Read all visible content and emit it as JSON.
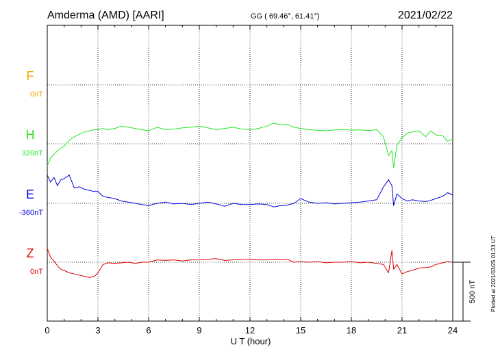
{
  "header": {
    "station": "Amderma (AMD)  [AARI]",
    "coords": "GG ( 69.46°,  61.41°)",
    "date": "2021/02/22"
  },
  "footer_note": "Plotted at 2021/03/25 01:33 UT",
  "chart_data": {
    "type": "line",
    "xlabel": "U T (hour)",
    "xlim": [
      0,
      24
    ],
    "xticks": [
      "0",
      "3",
      "6",
      "9",
      "12",
      "15",
      "18",
      "21",
      "24"
    ],
    "scale_bar_label": "500 nT",
    "scale_bar_nT": 500,
    "series": [
      {
        "name": "F",
        "baseline_label": "0nT",
        "color": "#f5a300",
        "x": [],
        "y": []
      },
      {
        "name": "H",
        "baseline_label": "320nT",
        "color": "#22e622",
        "x": [
          0,
          0.2,
          0.4,
          0.6,
          0.8,
          1.0,
          1.3,
          1.6,
          1.9,
          2.2,
          2.5,
          2.8,
          3.0,
          3.3,
          3.6,
          4.0,
          4.4,
          4.8,
          5.2,
          5.6,
          6.0,
          6.5,
          7.0,
          7.5,
          8.0,
          8.5,
          9.0,
          9.5,
          10.0,
          10.5,
          11.0,
          11.5,
          12.0,
          12.5,
          13.0,
          13.4,
          13.8,
          14.2,
          14.6,
          15.0,
          15.5,
          16.0,
          16.5,
          17.0,
          17.5,
          18.0,
          18.5,
          19.0,
          19.5,
          19.9,
          20.2,
          20.4,
          20.5,
          20.7,
          21.0,
          21.3,
          21.6,
          22.0,
          22.4,
          22.7,
          23.0,
          23.4,
          23.7,
          24.0
        ],
        "y": [
          -190,
          -120,
          -90,
          -60,
          -40,
          -20,
          30,
          60,
          80,
          100,
          110,
          120,
          120,
          130,
          120,
          130,
          150,
          140,
          130,
          120,
          110,
          140,
          120,
          125,
          135,
          140,
          150,
          135,
          120,
          130,
          140,
          125,
          120,
          130,
          150,
          175,
          160,
          165,
          140,
          130,
          120,
          115,
          110,
          118,
          122,
          115,
          118,
          112,
          120,
          60,
          -100,
          -60,
          -205,
          -10,
          50,
          90,
          100,
          110,
          60,
          110,
          75,
          70,
          20,
          40
        ]
      },
      {
        "name": "E",
        "baseline_label": "-360nT",
        "color": "#0000dd",
        "x": [
          0,
          0.2,
          0.4,
          0.6,
          0.8,
          1.0,
          1.3,
          1.6,
          1.9,
          2.2,
          2.5,
          2.8,
          3.0,
          3.3,
          3.6,
          4.0,
          4.4,
          4.8,
          5.2,
          5.6,
          6.0,
          6.5,
          7.0,
          7.5,
          8.0,
          8.5,
          9.0,
          9.5,
          10.0,
          10.5,
          11.0,
          11.5,
          12.0,
          12.5,
          13.0,
          13.4,
          13.8,
          14.2,
          14.6,
          15.0,
          15.5,
          16.0,
          16.5,
          17.0,
          17.5,
          18.0,
          18.5,
          19.0,
          19.5,
          19.9,
          20.2,
          20.4,
          20.5,
          20.7,
          21.0,
          21.3,
          21.6,
          22.0,
          22.4,
          22.7,
          23.0,
          23.4,
          23.7,
          24.0
        ],
        "y": [
          240,
          180,
          220,
          150,
          200,
          210,
          240,
          130,
          140,
          120,
          110,
          100,
          100,
          60,
          50,
          40,
          20,
          10,
          0,
          -10,
          -20,
          0,
          10,
          -5,
          0,
          -10,
          0,
          10,
          -5,
          -25,
          0,
          -10,
          -10,
          -5,
          -10,
          -30,
          -20,
          -15,
          0,
          40,
          10,
          0,
          5,
          -5,
          0,
          5,
          10,
          20,
          30,
          140,
          200,
          150,
          -20,
          80,
          40,
          20,
          30,
          20,
          15,
          25,
          40,
          60,
          90,
          70
        ]
      },
      {
        "name": "Z",
        "baseline_label": "0nT",
        "color": "#dd0000",
        "x": [
          0,
          0.2,
          0.4,
          0.6,
          0.8,
          1.0,
          1.3,
          1.6,
          1.9,
          2.2,
          2.5,
          2.8,
          3.0,
          3.3,
          3.6,
          4.0,
          4.4,
          4.8,
          5.2,
          5.6,
          6.0,
          6.5,
          7.0,
          7.5,
          8.0,
          8.5,
          9.0,
          9.5,
          10.0,
          10.5,
          11.0,
          11.5,
          12.0,
          12.5,
          13.0,
          13.4,
          13.8,
          14.2,
          14.6,
          15.0,
          15.5,
          16.0,
          16.5,
          17.0,
          17.5,
          18.0,
          18.5,
          19.0,
          19.5,
          19.9,
          20.2,
          20.4,
          20.5,
          20.7,
          21.0,
          21.3,
          21.6,
          22.0,
          22.4,
          22.7,
          23.0,
          23.4,
          23.7,
          24.0
        ],
        "y": [
          120,
          40,
          10,
          -30,
          -60,
          -70,
          -90,
          -100,
          -110,
          -120,
          -130,
          -120,
          -90,
          -20,
          -5,
          -10,
          -5,
          0,
          -10,
          0,
          0,
          20,
          15,
          20,
          10,
          20,
          20,
          25,
          30,
          15,
          20,
          25,
          25,
          20,
          20,
          25,
          20,
          25,
          0,
          5,
          0,
          5,
          -5,
          0,
          0,
          5,
          -5,
          0,
          -10,
          -20,
          -90,
          100,
          -60,
          -20,
          -100,
          -80,
          -70,
          -50,
          -45,
          -40,
          -20,
          -5,
          5,
          0
        ]
      }
    ]
  }
}
